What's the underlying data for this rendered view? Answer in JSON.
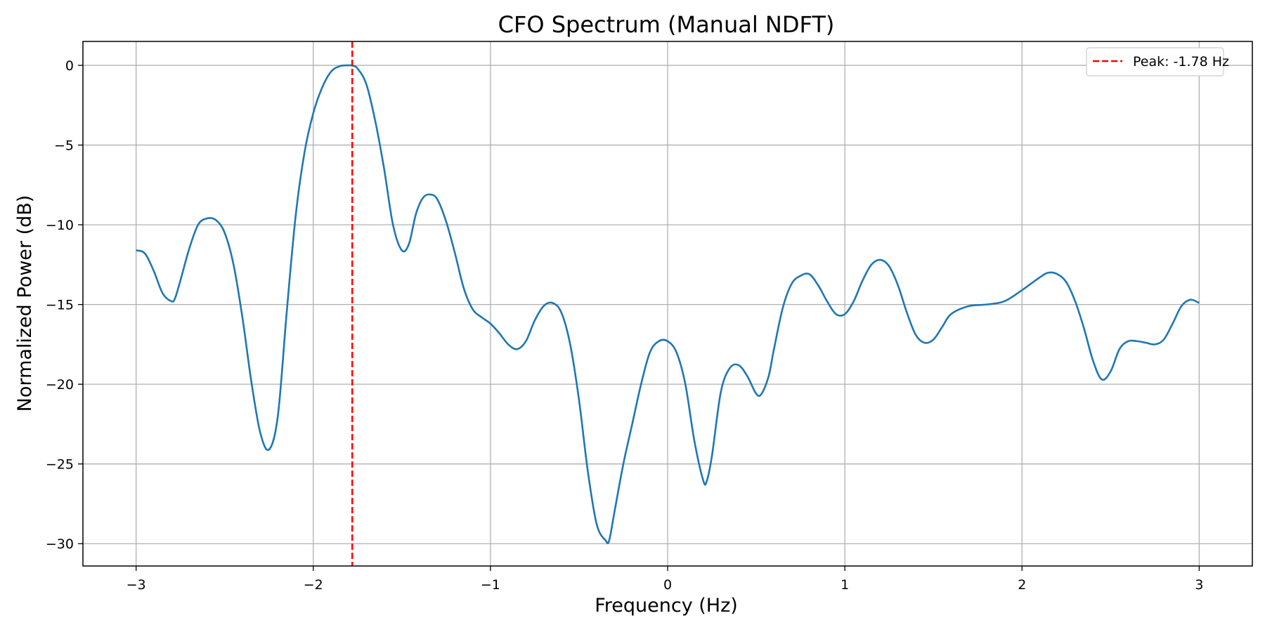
{
  "chart_data": {
    "type": "line",
    "title": "CFO Spectrum (Manual NDFT)",
    "xlabel": "Frequency (Hz)",
    "ylabel": "Normalized Power (dB)",
    "xlim": [
      -3.3,
      3.3
    ],
    "ylim": [
      -31.4,
      1.5
    ],
    "xticks": [
      -3,
      -2,
      -1,
      0,
      1,
      2,
      3
    ],
    "xtick_labels": [
      "−3",
      "−2",
      "−1",
      "0",
      "1",
      "2",
      "3"
    ],
    "yticks": [
      0,
      -5,
      -10,
      -15,
      -20,
      -25,
      -30
    ],
    "ytick_labels": [
      "0",
      "−5",
      "−10",
      "−15",
      "−20",
      "−25",
      "−30"
    ],
    "grid": true,
    "legend_position": "top-right",
    "colors": {
      "series": "#1f77b4",
      "peak": "#ff0000",
      "grid": "#b0b0b0"
    },
    "series": [
      {
        "x": [
          -3.0,
          -2.95,
          -2.9,
          -2.85,
          -2.8,
          -2.78,
          -2.75,
          -2.7,
          -2.65,
          -2.6,
          -2.55,
          -2.5,
          -2.45,
          -2.4,
          -2.35,
          -2.3,
          -2.25,
          -2.2,
          -2.15,
          -2.1,
          -2.05,
          -2.0,
          -1.95,
          -1.9,
          -1.85,
          -1.8,
          -1.78,
          -1.75,
          -1.7,
          -1.65,
          -1.6,
          -1.55,
          -1.5,
          -1.46,
          -1.42,
          -1.38,
          -1.34,
          -1.3,
          -1.25,
          -1.2,
          -1.15,
          -1.1,
          -1.05,
          -1.0,
          -0.95,
          -0.9,
          -0.85,
          -0.8,
          -0.75,
          -0.7,
          -0.65,
          -0.6,
          -0.55,
          -0.5,
          -0.45,
          -0.4,
          -0.35,
          -0.33,
          -0.3,
          -0.25,
          -0.2,
          -0.15,
          -0.1,
          -0.05,
          0.0,
          0.05,
          0.1,
          0.15,
          0.2,
          0.22,
          0.25,
          0.3,
          0.35,
          0.4,
          0.45,
          0.5,
          0.53,
          0.57,
          0.6,
          0.65,
          0.7,
          0.75,
          0.8,
          0.85,
          0.9,
          0.95,
          1.0,
          1.05,
          1.1,
          1.15,
          1.2,
          1.25,
          1.3,
          1.35,
          1.4,
          1.45,
          1.5,
          1.55,
          1.6,
          1.7,
          1.8,
          1.9,
          2.0,
          2.1,
          2.15,
          2.2,
          2.25,
          2.3,
          2.35,
          2.4,
          2.45,
          2.5,
          2.55,
          2.6,
          2.65,
          2.7,
          2.75,
          2.8,
          2.85,
          2.9,
          2.95,
          3.0
        ],
        "y": [
          -11.6,
          -11.8,
          -12.9,
          -14.3,
          -14.8,
          -14.6,
          -13.5,
          -11.5,
          -10.0,
          -9.6,
          -9.7,
          -10.5,
          -12.5,
          -15.8,
          -19.8,
          -23.0,
          -24.1,
          -22.0,
          -15.5,
          -9.5,
          -5.5,
          -3.0,
          -1.4,
          -0.4,
          -0.05,
          -0.0,
          -0.02,
          -0.2,
          -1.2,
          -3.5,
          -6.5,
          -10.0,
          -11.6,
          -11.2,
          -9.3,
          -8.3,
          -8.1,
          -8.4,
          -9.8,
          -11.8,
          -14.0,
          -15.3,
          -15.8,
          -16.2,
          -16.8,
          -17.5,
          -17.8,
          -17.3,
          -16.0,
          -15.1,
          -14.9,
          -15.5,
          -17.5,
          -21.0,
          -25.5,
          -28.8,
          -29.8,
          -29.8,
          -28.0,
          -25.0,
          -22.5,
          -20.0,
          -18.0,
          -17.3,
          -17.3,
          -18.0,
          -20.0,
          -23.5,
          -26.0,
          -26.1,
          -24.5,
          -20.5,
          -19.0,
          -18.8,
          -19.5,
          -20.6,
          -20.6,
          -19.5,
          -17.8,
          -15.2,
          -13.7,
          -13.2,
          -13.1,
          -13.8,
          -14.8,
          -15.6,
          -15.6,
          -14.8,
          -13.5,
          -12.5,
          -12.2,
          -12.6,
          -13.8,
          -15.5,
          -16.9,
          -17.4,
          -17.2,
          -16.4,
          -15.6,
          -15.1,
          -15.0,
          -14.8,
          -14.1,
          -13.3,
          -13.0,
          -13.1,
          -13.6,
          -14.8,
          -16.5,
          -18.5,
          -19.7,
          -19.2,
          -17.8,
          -17.3,
          -17.3,
          -17.4,
          -17.5,
          -17.2,
          -16.2,
          -15.1,
          -14.7,
          -14.9
        ]
      }
    ],
    "peak_line": {
      "x": -1.78,
      "legend": "Peak: -1.78 Hz"
    }
  }
}
